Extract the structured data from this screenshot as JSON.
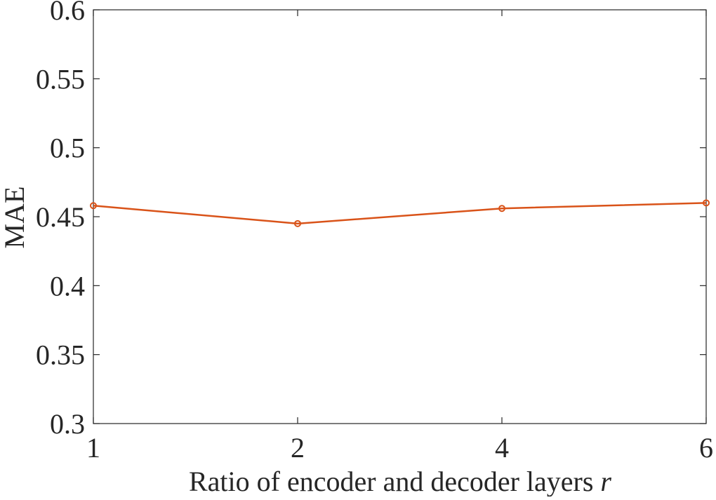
{
  "chart_data": {
    "type": "line",
    "title": "",
    "xlabel_text": "Ratio of encoder and decoder layers ",
    "xlabel_var": "r",
    "ylabel": "MAE",
    "categories": [
      "1",
      "2",
      "4",
      "6"
    ],
    "ylim": [
      0.3,
      0.6
    ],
    "yticks": [
      "0.3",
      "0.35",
      "0.4",
      "0.45",
      "0.5",
      "0.55",
      "0.6"
    ],
    "grid": false,
    "series": [
      {
        "values": [
          0.458,
          0.445,
          0.456,
          0.46
        ],
        "color": "#D95319",
        "marker": "circle"
      }
    ]
  }
}
